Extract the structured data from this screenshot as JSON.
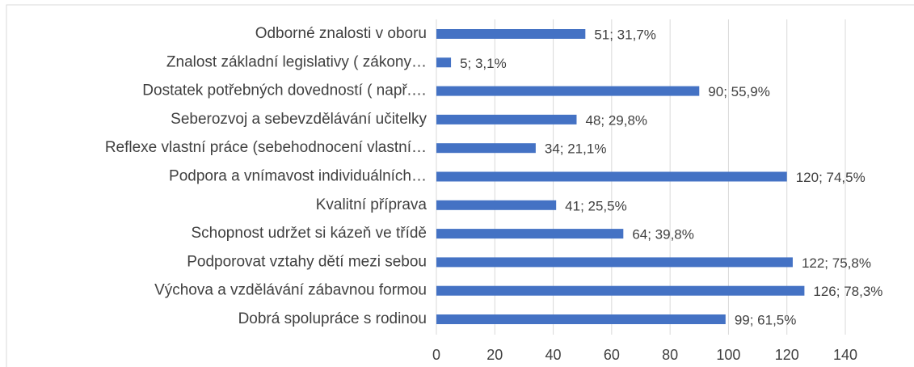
{
  "chart_data": {
    "type": "bar",
    "orientation": "horizontal",
    "categories": [
      "Odborné znalosti  v oboru",
      "Znalost základní legislativy ( zákony…",
      "Dostatek potřebných dovedností ( např.…",
      "Seberozvoj a sebevzdělávání učitelky",
      "Reflexe vlastní práce (sebehodnocení vlastní…",
      "Podpora a vnímavost individuálních…",
      "Kvalitní příprava",
      "Schopnost udržet si kázeň ve třídě",
      "Podporovat vztahy dětí mezi sebou",
      "Výchova a vzdělávání  zábavnou formou",
      "Dobrá spolupráce s rodinou"
    ],
    "values": [
      51,
      5,
      90,
      48,
      34,
      120,
      41,
      64,
      122,
      126,
      99
    ],
    "value_labels": [
      "51; 31,7%",
      "5; 3,1%",
      "90; 55,9%",
      "48; 29,8%",
      "34; 21,1%",
      "120; 74,5%",
      "41; 25,5%",
      "64; 39,8%",
      "122; 75,8%",
      "126; 78,3%",
      "99; 61,5%"
    ],
    "color": "#4472c4",
    "xlim": [
      0,
      140
    ],
    "xticks": [
      0,
      20,
      40,
      60,
      80,
      100,
      120,
      140
    ],
    "grid": true
  }
}
